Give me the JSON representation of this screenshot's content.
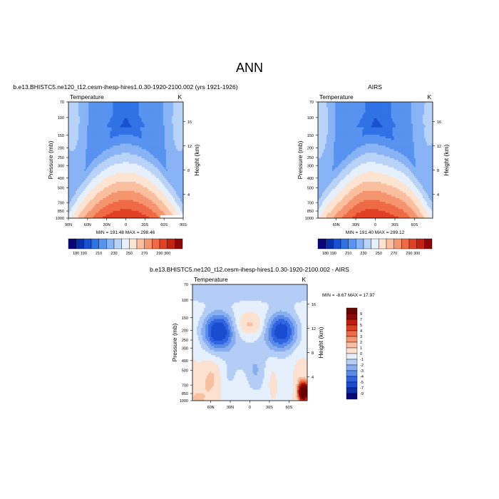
{
  "figure": {
    "title": "ANN"
  },
  "contour_levels": {
    "absolute": [
      180,
      190,
      200,
      210,
      220,
      230,
      240,
      250,
      260,
      270,
      280,
      290,
      300
    ],
    "difference": [
      -9,
      -7,
      -5,
      -4,
      -3,
      -2,
      -1,
      0,
      1,
      2,
      3,
      4,
      5,
      7,
      9
    ]
  },
  "colorbar_colors": {
    "absolute": [
      "#08077a",
      "#0a2fa6",
      "#1950d0",
      "#2f72e6",
      "#5893f0",
      "#88b3f5",
      "#b8d2f8",
      "#e6f0fc",
      "#fde3d2",
      "#f9bf9f",
      "#f59570",
      "#ef6a45",
      "#e04126",
      "#c32112",
      "#8e0707"
    ],
    "difference": [
      "#07077a",
      "#0a2fa6",
      "#1a4ccf",
      "#3064e0",
      "#5b8be8",
      "#89aef0",
      "#b4cdf6",
      "#e5f0fc",
      "#fce1d1",
      "#f8bfa0",
      "#f39571",
      "#ec6a45",
      "#dd3e22",
      "#be1d10",
      "#8b0808",
      "#6a0303"
    ]
  },
  "chart_data": [
    {
      "type": "contour",
      "panel": "top-left",
      "title": "b.e13.BHISTC5.ne120_t12.cesm-ihesp-hires1.0.30-1920-2100.002 (yrs 1921-1926)",
      "left_label": "Temperature",
      "right_label": "K",
      "ylabel": "Pressure (mb)",
      "right_axis_label": "Height (km)",
      "x_ticks": [
        "90N",
        "60N",
        "30N",
        "0",
        "30S",
        "60S",
        "90S"
      ],
      "y_ticks": [
        "70",
        "100",
        "150",
        "200",
        "250",
        "300",
        "400",
        "500",
        "700",
        "850",
        "1000"
      ],
      "height_ticks": [
        "16",
        "12",
        "8",
        "4"
      ],
      "colorbar_labels": [
        "180",
        "190",
        "210",
        "230",
        "250",
        "270",
        "290",
        "300"
      ],
      "stats_text": "MIN = 191.48   MAX = 298.46",
      "min": 191.48,
      "max": 298.46
    },
    {
      "type": "contour",
      "panel": "top-right",
      "title": "AIRS",
      "left_label": "Temperature",
      "right_label": "K",
      "ylabel": "Pressure (mb)",
      "right_axis_label": "Height (km)",
      "x_ticks": [
        "60N",
        "30N",
        "0",
        "30S",
        "60S"
      ],
      "y_ticks": [
        "70",
        "100",
        "150",
        "200",
        "250",
        "300",
        "400",
        "500",
        "700",
        "850",
        "1000"
      ],
      "height_ticks": [
        "16",
        "12",
        "8",
        "4"
      ],
      "colorbar_labels": [
        "180",
        "190",
        "210",
        "230",
        "250",
        "270",
        "290",
        "300"
      ],
      "stats_text": "MIN = 191.40   MAX = 299.12",
      "min": 191.4,
      "max": 299.12
    },
    {
      "type": "contour",
      "panel": "bottom",
      "title": "b.e13.BHISTC5.ne120_t12.cesm-ihesp-hires1.0.30-1920-2100.002 - AIRS",
      "left_label": "Temperature",
      "right_label": "K",
      "ylabel": "Pressure (mb)",
      "right_axis_label": "Height (km)",
      "x_ticks": [
        "60N",
        "30N",
        "0",
        "30S",
        "60S"
      ],
      "y_ticks": [
        "70",
        "100",
        "150",
        "200",
        "250",
        "300",
        "400",
        "500",
        "700",
        "850",
        "1000"
      ],
      "height_ticks": [
        "16",
        "12",
        "8",
        "4"
      ],
      "colorbar_labels": [
        "9",
        "7",
        "5",
        "4",
        "3",
        "2",
        "1",
        "0",
        "-1",
        "-2",
        "-3",
        "-4",
        "-5",
        "-7",
        "-9"
      ],
      "stats_text": "MIN =  -8.67   MAX =  17.97",
      "min": -8.67,
      "max": 17.97
    }
  ]
}
